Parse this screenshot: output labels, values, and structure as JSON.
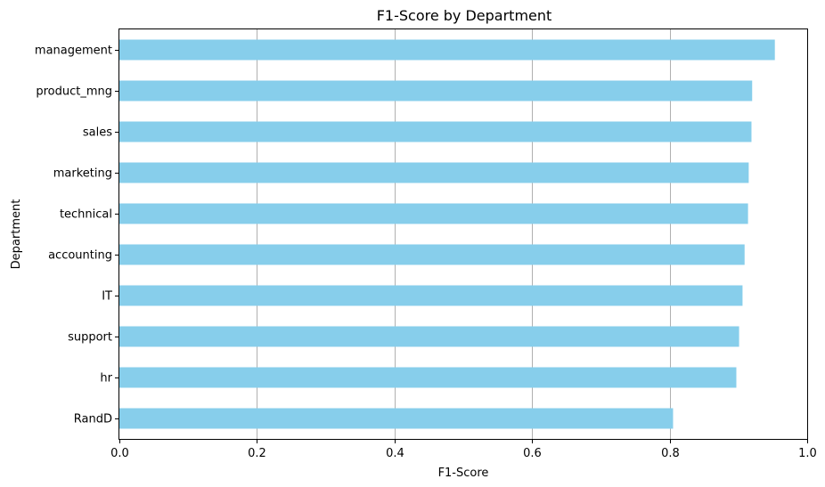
{
  "chart_data": {
    "type": "bar",
    "orientation": "horizontal",
    "title": "F1-Score by Department",
    "xlabel": "F1-Score",
    "ylabel": "Department",
    "categories": [
      "management",
      "product_mng",
      "sales",
      "marketing",
      "technical",
      "accounting",
      "IT",
      "support",
      "hr",
      "RandD"
    ],
    "values": [
      0.953,
      0.92,
      0.919,
      0.915,
      0.914,
      0.909,
      0.906,
      0.901,
      0.897,
      0.805
    ],
    "xlim": [
      0.0,
      1.0
    ],
    "xticks": [
      "0.0",
      "0.2",
      "0.4",
      "0.6",
      "0.8",
      "1.0"
    ],
    "grid": "x-axis vertical gridlines",
    "bar_color": "#87CEEB",
    "grid_color": "#b0b0b0"
  }
}
